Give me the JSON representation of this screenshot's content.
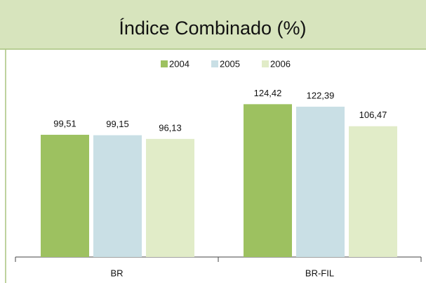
{
  "chart_data": {
    "type": "bar",
    "title": "Índice Combinado (%)",
    "categories": [
      "BR",
      "BR-FIL"
    ],
    "series": [
      {
        "name": "2004",
        "color": "#9dc160",
        "values": [
          99.51,
          124.42
        ],
        "value_labels": [
          "99,51",
          "124,42"
        ]
      },
      {
        "name": "2005",
        "color": "#c9dfe5",
        "values": [
          99.15,
          122.39
        ],
        "value_labels": [
          "99,15",
          "122,39"
        ]
      },
      {
        "name": "2006",
        "color": "#e1ecc8",
        "values": [
          96.13,
          106.47
        ],
        "value_labels": [
          "96,13",
          "106,47"
        ]
      }
    ],
    "ylim": [
      0,
      130
    ],
    "legend": "top"
  }
}
